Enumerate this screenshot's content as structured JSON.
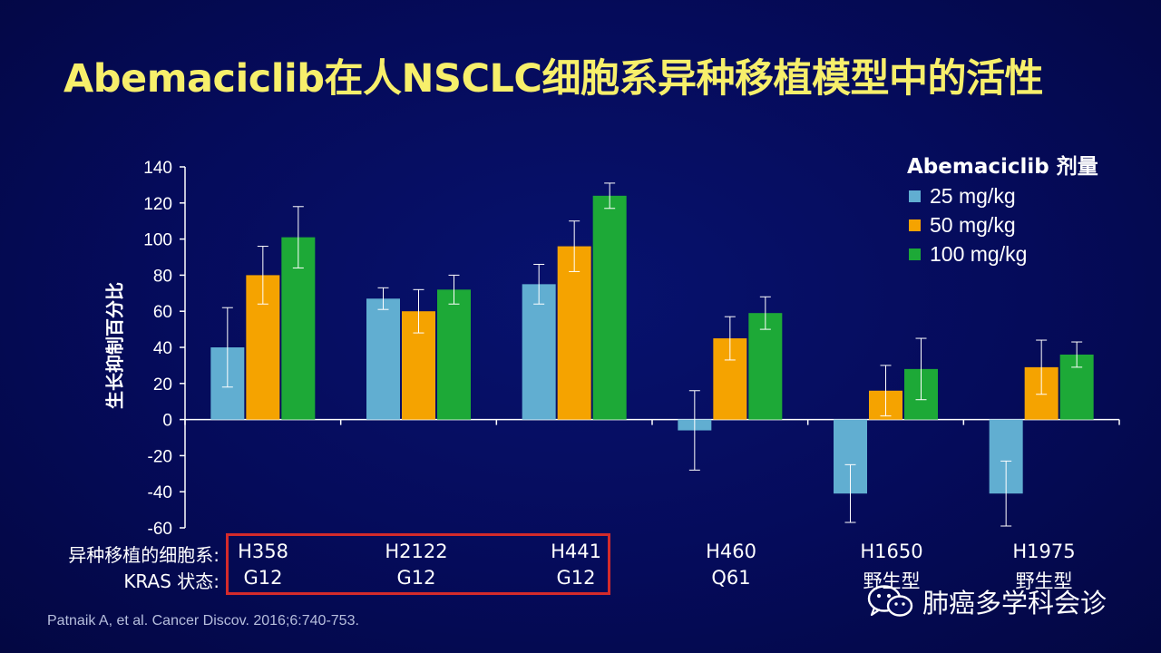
{
  "slide": {
    "title": "Abemaciclib在人NSCLC细胞系异种移植模型中的活性",
    "citation": "Patnaik A, et al. Cancer Discov. 2016;6:740-753.",
    "watermark": "肺癌多学科会诊"
  },
  "legend": {
    "title": "Abemaciclib 剂量"
  },
  "table": {
    "row1_label": "异种移植的细胞系:",
    "row2_label": "KRAS 状态:",
    "cell_lines": [
      "H358",
      "H2122",
      "H441",
      "H460",
      "H1650",
      "H1975"
    ],
    "kras_status": [
      "G12",
      "G12",
      "G12",
      "Q61",
      "野生型",
      "野生型"
    ]
  },
  "colors": {
    "25": "#61aed1",
    "50": "#f5a300",
    "100": "#1da937",
    "title": "#f7ef6b",
    "highlight_box": "#d42b2b"
  },
  "chart_data": {
    "type": "bar",
    "ylabel": "生长抑制百分比",
    "ylim": [
      -60,
      140
    ],
    "yticks": [
      140,
      120,
      100,
      80,
      60,
      40,
      20,
      0,
      -20,
      -40,
      -60
    ],
    "categories": [
      "H358",
      "H2122",
      "H441",
      "H460",
      "H1650",
      "H1975"
    ],
    "grid": false,
    "legend_position": "top-right",
    "series": [
      {
        "name": "25 mg/kg",
        "color": "#61aed1",
        "values": [
          40,
          67,
          75,
          -6,
          -41,
          -41
        ],
        "errors": [
          22,
          6,
          11,
          22,
          16,
          18
        ]
      },
      {
        "name": "50 mg/kg",
        "color": "#f5a300",
        "values": [
          80,
          60,
          96,
          45,
          16,
          29
        ],
        "errors": [
          16,
          12,
          14,
          12,
          14,
          15
        ]
      },
      {
        "name": "100 mg/kg",
        "color": "#1da937",
        "values": [
          101,
          72,
          124,
          59,
          28,
          36
        ],
        "errors": [
          17,
          8,
          7,
          9,
          17,
          7
        ]
      }
    ]
  }
}
